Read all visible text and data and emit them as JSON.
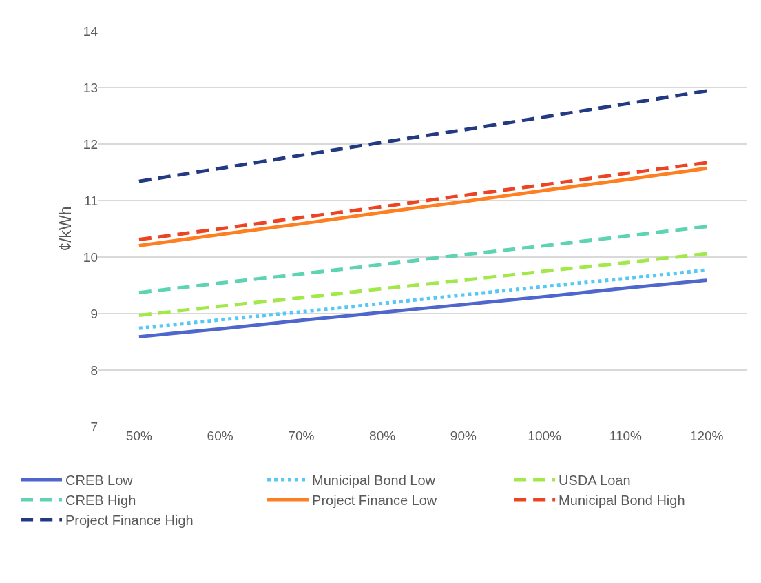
{
  "chart_data": {
    "type": "line",
    "ylabel": "¢/kWh",
    "categories": [
      "50%",
      "60%",
      "70%",
      "80%",
      "90%",
      "100%",
      "110%",
      "120%"
    ],
    "ylim": [
      7,
      14
    ],
    "yticks": [
      7,
      8,
      9,
      10,
      11,
      12,
      13,
      14
    ],
    "grid": "y",
    "legend": "bottom",
    "marker": "none",
    "series": [
      {
        "name": "CREB Low",
        "color": "#4f67cd",
        "line_style": "solid",
        "values": [
          8.59,
          8.73,
          8.88,
          9.02,
          9.16,
          9.3,
          9.45,
          9.59
        ]
      },
      {
        "name": "Municipal Bond Low",
        "color": "#56c8f5",
        "line_style": "dotted",
        "values": [
          8.74,
          8.89,
          9.03,
          9.18,
          9.33,
          9.48,
          9.62,
          9.77
        ]
      },
      {
        "name": "USDA Loan",
        "color": "#a2e84a",
        "line_style": "dashed",
        "values": [
          8.97,
          9.13,
          9.28,
          9.44,
          9.59,
          9.75,
          9.9,
          10.06
        ]
      },
      {
        "name": "CREB High",
        "color": "#5dd3b3",
        "line_style": "dashed",
        "values": [
          9.37,
          9.54,
          9.7,
          9.87,
          10.04,
          10.2,
          10.37,
          10.54
        ]
      },
      {
        "name": "Project Finance Low",
        "color": "#fd7f22",
        "line_style": "solid",
        "values": [
          10.2,
          10.4,
          10.59,
          10.79,
          10.98,
          11.18,
          11.37,
          11.57
        ]
      },
      {
        "name": "Municipal Bond High",
        "color": "#ec4324",
        "line_style": "dashed",
        "values": [
          10.31,
          10.5,
          10.7,
          10.89,
          11.09,
          11.28,
          11.48,
          11.67
        ]
      },
      {
        "name": "Project Finance High",
        "color": "#233a82",
        "line_style": "dashed",
        "values": [
          11.34,
          11.57,
          11.8,
          12.03,
          12.25,
          12.48,
          12.71,
          12.94
        ]
      }
    ]
  }
}
